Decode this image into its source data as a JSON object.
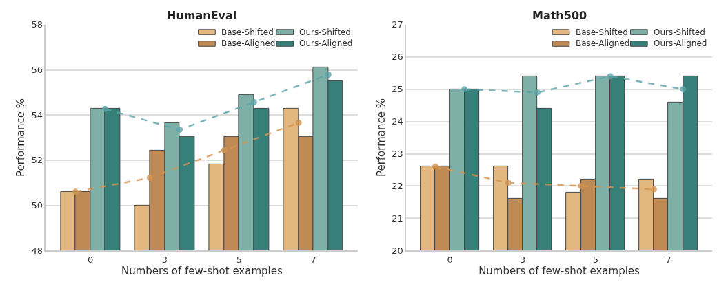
{
  "chart_data": [
    {
      "type": "bar",
      "title": "HumanEval",
      "xlabel": "Numbers of few-shot examples",
      "ylabel": "Performance %",
      "categories": [
        "0",
        "3",
        "5",
        "7"
      ],
      "ylim": [
        48,
        58
      ],
      "yticks": [
        48,
        50,
        52,
        54,
        56,
        58
      ],
      "grid": "y",
      "legend": "top right",
      "series": [
        {
          "name": "Base-Shifted",
          "color": "#e3b880",
          "values": [
            50.6,
            50.0,
            51.83,
            54.27
          ]
        },
        {
          "name": "Base-Aligned",
          "color": "#c08a55",
          "values": [
            50.6,
            52.44,
            53.05,
            53.05
          ]
        },
        {
          "name": "Ours-Shifted",
          "color": "#7fb0a8",
          "values": [
            54.27,
            53.66,
            54.88,
            56.1
          ]
        },
        {
          "name": "Ours-Aligned",
          "color": "#37807a",
          "values": [
            54.27,
            53.05,
            54.27,
            55.49
          ]
        },
        {
          "type": "line",
          "color": "#d4944f",
          "x": [
            "0",
            "3",
            "5",
            "7"
          ],
          "values": [
            50.6,
            51.22,
            52.44,
            53.66
          ],
          "marker": "circle",
          "line_style": "dashed"
        },
        {
          "type": "line",
          "color": "#5aa5a8",
          "x": [
            "0",
            "3",
            "5",
            "7"
          ],
          "values": [
            54.27,
            53.35,
            54.57,
            55.79
          ],
          "marker": "circle",
          "line_style": "dashed"
        }
      ]
    },
    {
      "type": "bar",
      "title": "Math500",
      "xlabel": "Numbers of few-shot examples",
      "ylabel": "Performance %",
      "categories": [
        "0",
        "3",
        "5",
        "7"
      ],
      "ylim": [
        20,
        27
      ],
      "yticks": [
        20,
        21,
        22,
        23,
        24,
        25,
        26,
        27
      ],
      "grid": "y",
      "legend": "top right",
      "series": [
        {
          "name": "Base-Shifted",
          "color": "#e3b880",
          "values": [
            22.6,
            22.6,
            21.8,
            22.2
          ]
        },
        {
          "name": "Base-Aligned",
          "color": "#c08a55",
          "values": [
            22.6,
            21.6,
            22.2,
            21.6
          ]
        },
        {
          "name": "Ours-Shifted",
          "color": "#7fb0a8",
          "values": [
            25.0,
            25.4,
            25.4,
            24.6
          ]
        },
        {
          "name": "Ours-Aligned",
          "color": "#37807a",
          "values": [
            25.0,
            24.4,
            25.4,
            25.4
          ]
        },
        {
          "type": "line",
          "color": "#d4944f",
          "x": [
            "0",
            "3",
            "5",
            "7"
          ],
          "values": [
            22.6,
            22.1,
            22.0,
            21.9
          ],
          "marker": "circle",
          "line_style": "dashed"
        },
        {
          "type": "line",
          "color": "#5aa5a8",
          "x": [
            "0",
            "3",
            "5",
            "7"
          ],
          "values": [
            25.0,
            24.9,
            25.4,
            25.0
          ],
          "marker": "circle",
          "line_style": "dashed"
        }
      ]
    }
  ]
}
